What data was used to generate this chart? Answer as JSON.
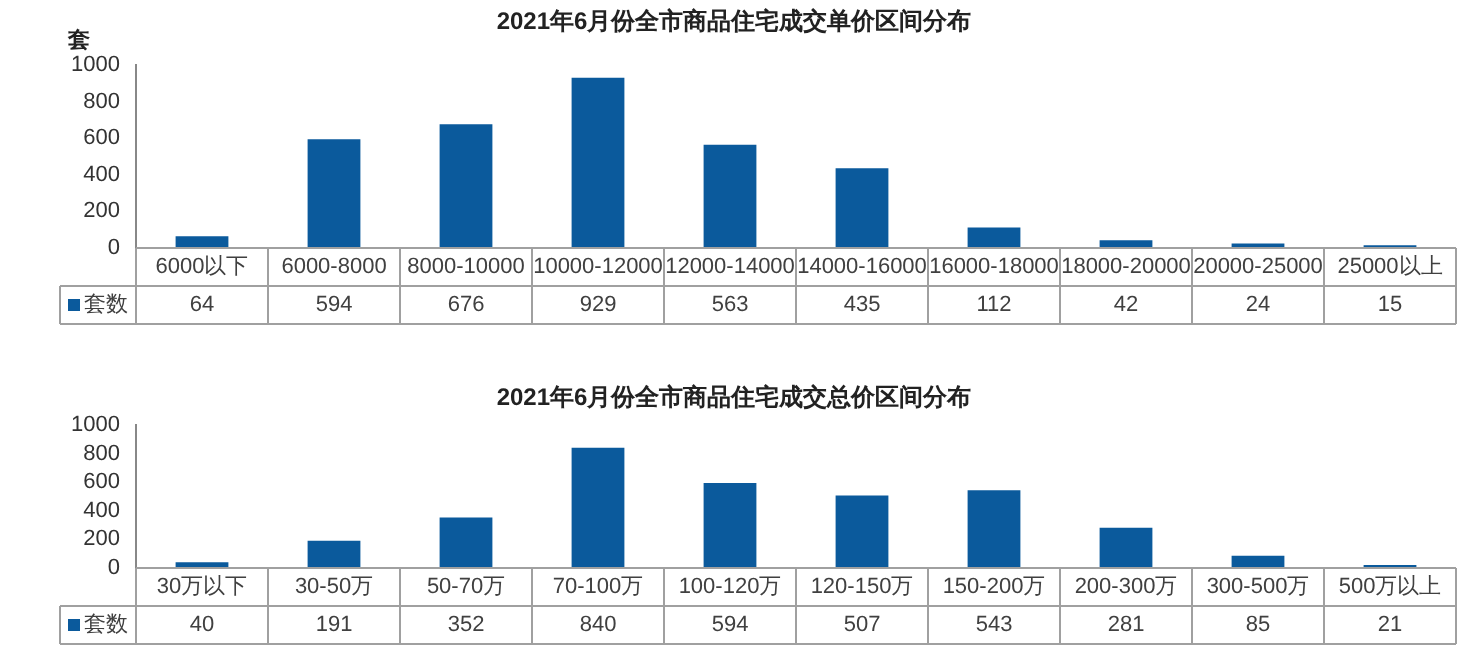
{
  "chart_data": [
    {
      "type": "bar",
      "title": "2021年6月份全市商品住宅成交单价区间分布",
      "ylabel": "套",
      "categories": [
        "6000以下",
        "6000-8000",
        "8000-10000",
        "10000-12000",
        "12000-14000",
        "14000-16000",
        "16000-18000",
        "18000-20000",
        "20000-25000",
        "25000以上"
      ],
      "series": [
        {
          "name": "套数",
          "color": "#0b5a9c",
          "values": [
            64,
            594,
            676,
            929,
            563,
            435,
            112,
            42,
            24,
            15
          ]
        }
      ],
      "ylim": [
        0,
        1000
      ],
      "yticks": [
        0,
        200,
        400,
        600,
        800,
        1000
      ],
      "data_labels": true,
      "legend": "bottom"
    },
    {
      "type": "bar",
      "title": "2021年6月份全市商品住宅成交总价区间分布",
      "categories": [
        "30万以下",
        "30-50万",
        "50-70万",
        "70-100万",
        "100-120万",
        "120-150万",
        "150-200万",
        "200-300万",
        "300-500万",
        "500万以上"
      ],
      "series": [
        {
          "name": "套数",
          "color": "#0b5a9c",
          "values": [
            40,
            191,
            352,
            840,
            594,
            507,
            543,
            281,
            85,
            21
          ]
        }
      ],
      "ylim": [
        0,
        1000
      ],
      "yticks": [
        0,
        200,
        400,
        600,
        800,
        1000
      ],
      "data_labels": true,
      "legend": "bottom"
    }
  ]
}
